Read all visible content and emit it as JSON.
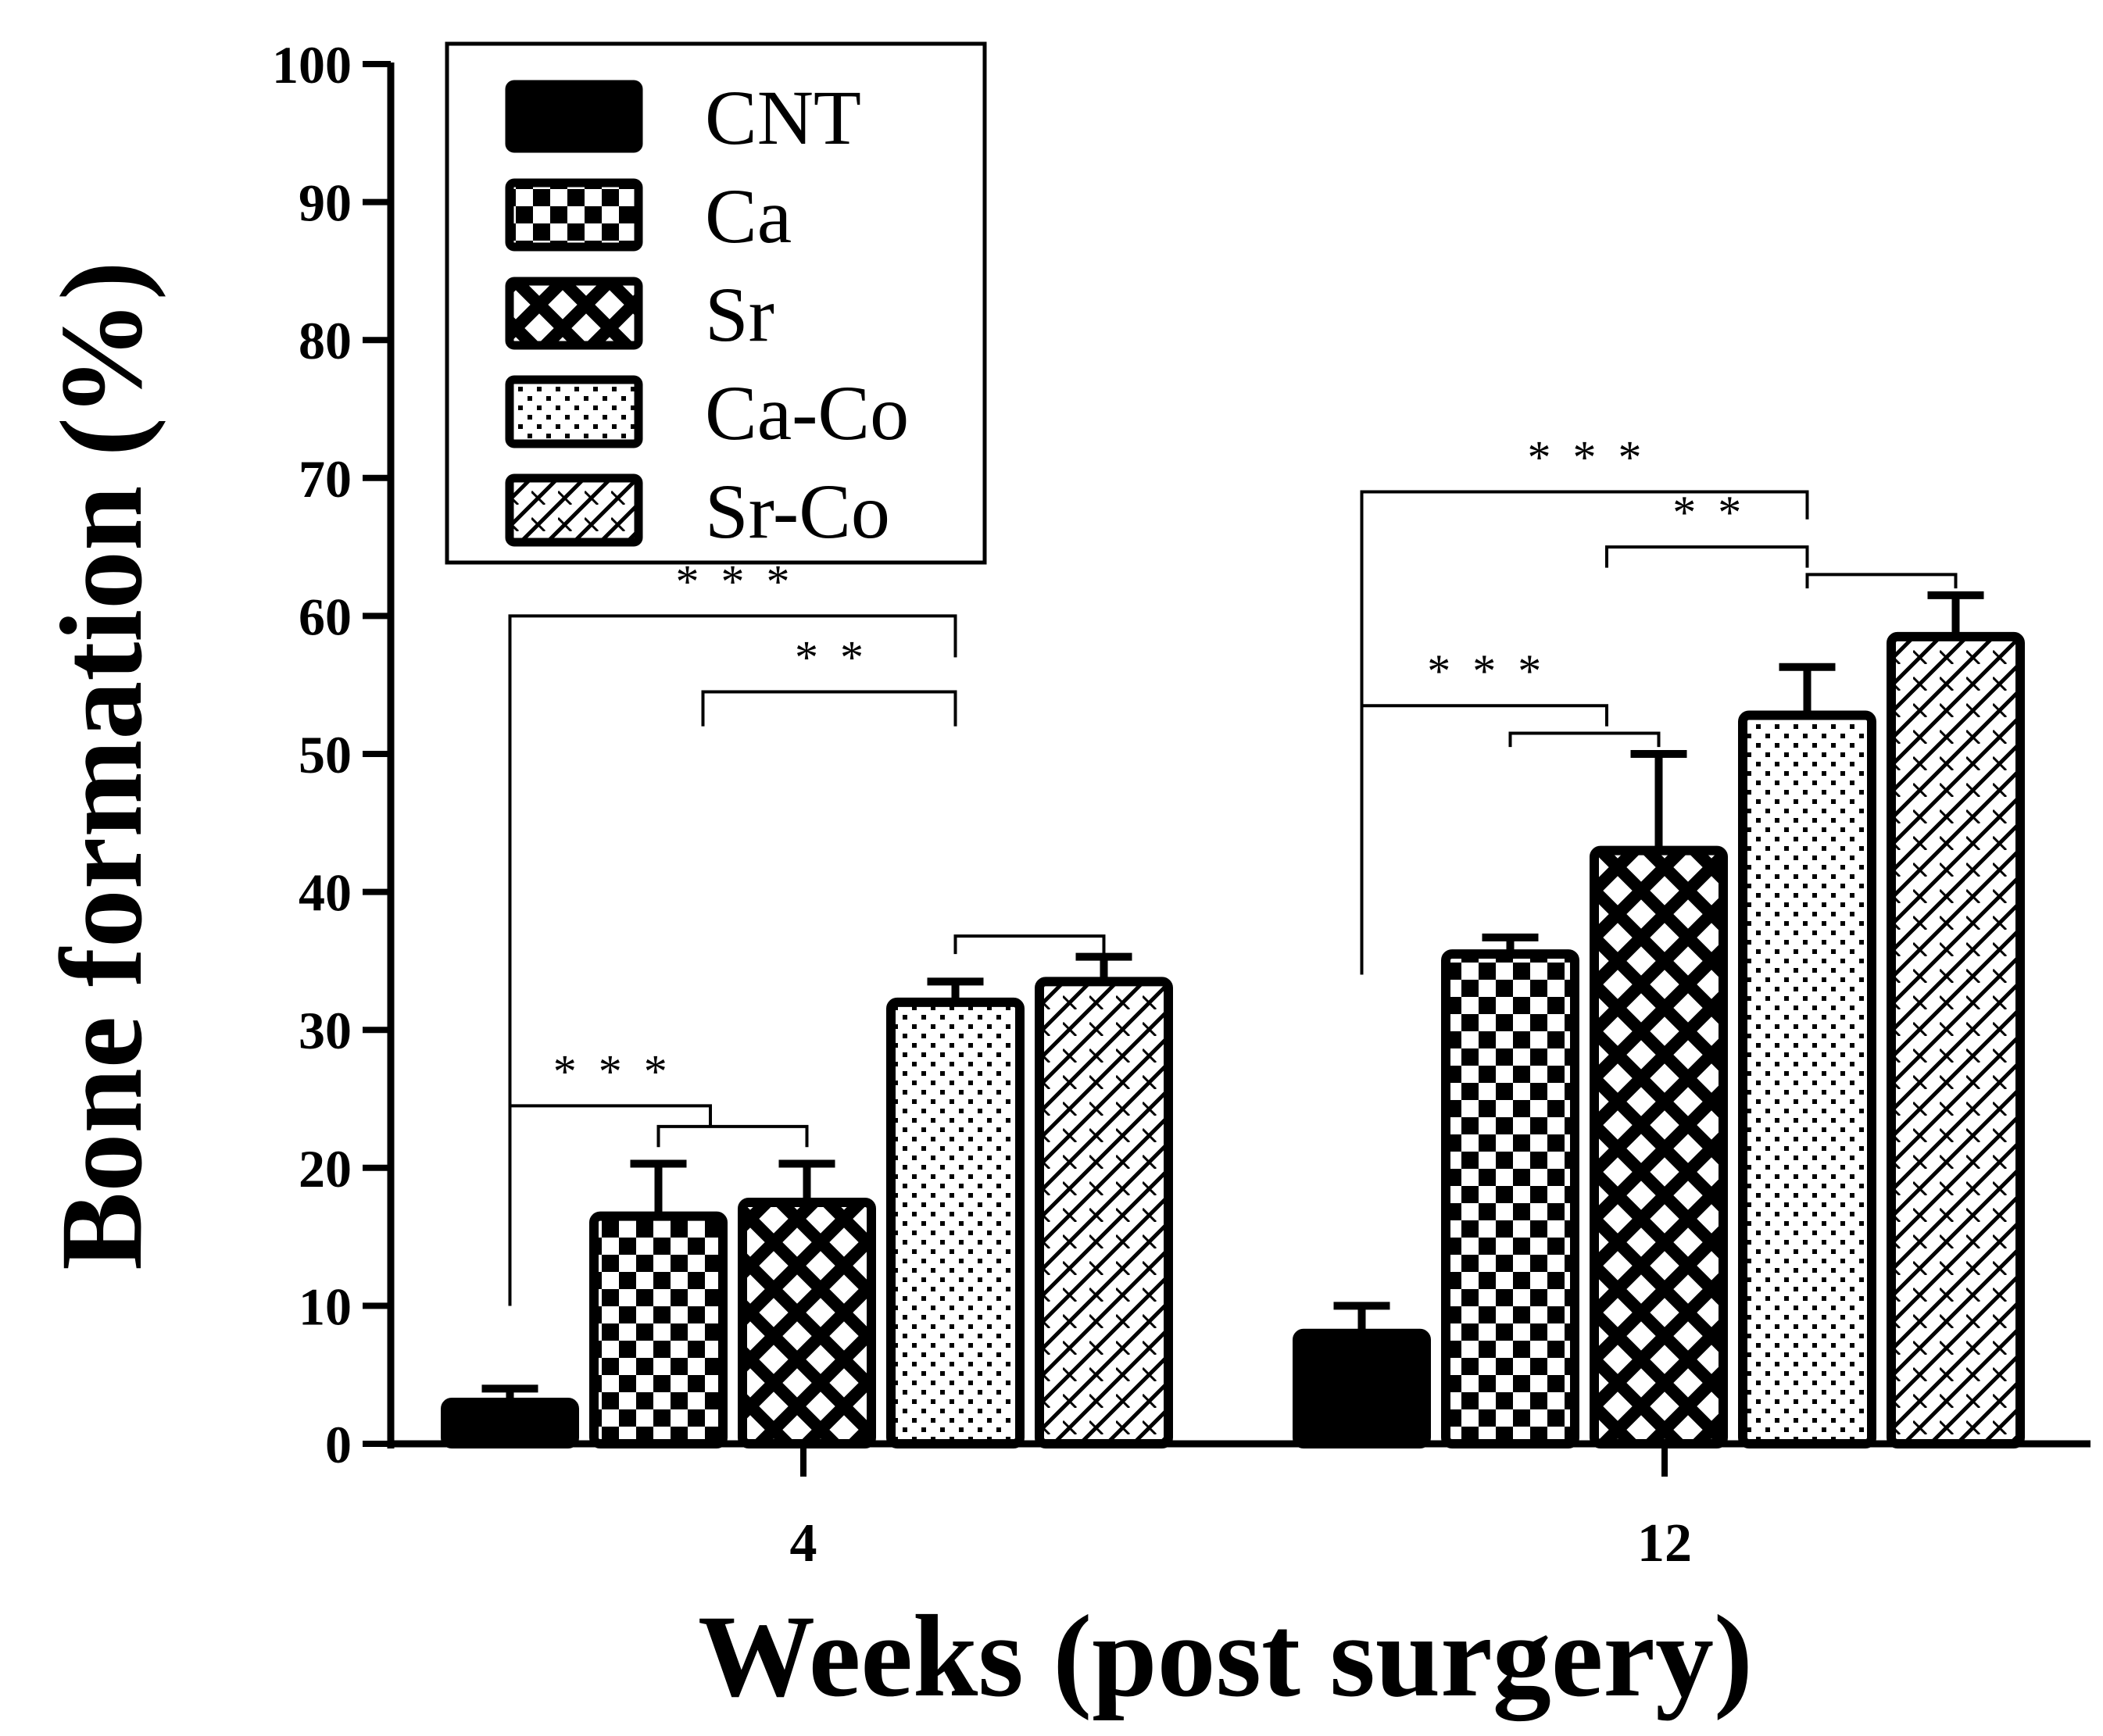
{
  "chart_data": {
    "type": "bar",
    "title": "",
    "xlabel": "Weeks (post surgery)",
    "ylabel": "Bone formation (%)",
    "ylim": [
      0,
      100
    ],
    "yticks": [
      "0",
      "10",
      "20",
      "30",
      "40",
      "50",
      "60",
      "70",
      "80",
      "90",
      "100"
    ],
    "categories": [
      "4",
      "12"
    ],
    "legend_position": "top-left",
    "grid": false,
    "series": [
      {
        "name": "CNT",
        "pattern": "solid",
        "values": [
          3,
          8
        ],
        "errors": [
          1.0,
          2.0
        ]
      },
      {
        "name": "Ca",
        "pattern": "checker",
        "values": [
          16.5,
          35.5
        ],
        "errors": [
          3.8,
          1.2
        ]
      },
      {
        "name": "Sr",
        "pattern": "diamond",
        "values": [
          17.5,
          43
        ],
        "errors": [
          2.8,
          7.0
        ]
      },
      {
        "name": "Ca-Co",
        "pattern": "dots",
        "values": [
          32,
          52.8
        ],
        "errors": [
          1.5,
          3.5
        ]
      },
      {
        "name": "Sr-Co",
        "pattern": "diagonal",
        "values": [
          33.5,
          58.5
        ],
        "errors": [
          1.8,
          3.0
        ]
      }
    ],
    "significance": [
      {
        "group": 0,
        "from": 0,
        "to": 3,
        "right_to": 4,
        "level": 60,
        "label": "***",
        "left_drop": 10,
        "bracket_bottom": 57
      },
      {
        "group": 0,
        "from": 1.3,
        "to": 3,
        "level": 54.5,
        "label": "**",
        "bracket_bottom": 52
      },
      {
        "group": 0,
        "from": 3,
        "to": 4,
        "level": 36.8,
        "label": "",
        "bracket_bottom": 35.5
      },
      {
        "group": 0,
        "from": 0,
        "to": 1.35,
        "level": 24.5,
        "label": "***",
        "left_drop": 10
      },
      {
        "group": 0,
        "from": 1.0,
        "to": 2,
        "level": 23,
        "label": "",
        "bracket_bottom": 21.5
      },
      {
        "group": 1,
        "from": 0,
        "to": 3,
        "level": 69,
        "label": "***",
        "left_drop": 34,
        "bracket_bottom": 67
      },
      {
        "group": 1,
        "from": 1.65,
        "to": 3,
        "level": 65,
        "label": "**",
        "bracket_bottom": 63.5
      },
      {
        "group": 1,
        "from": 3,
        "to": 4,
        "level": 63,
        "label": "",
        "bracket_bottom": 62
      },
      {
        "group": 1,
        "from": 0,
        "to": 1.65,
        "level": 53.5,
        "label": "***",
        "left_drop": 34
      },
      {
        "group": 1,
        "from": 1.0,
        "to": 2,
        "level": 51.5,
        "label": "",
        "bracket_bottom": 50.5
      }
    ]
  }
}
